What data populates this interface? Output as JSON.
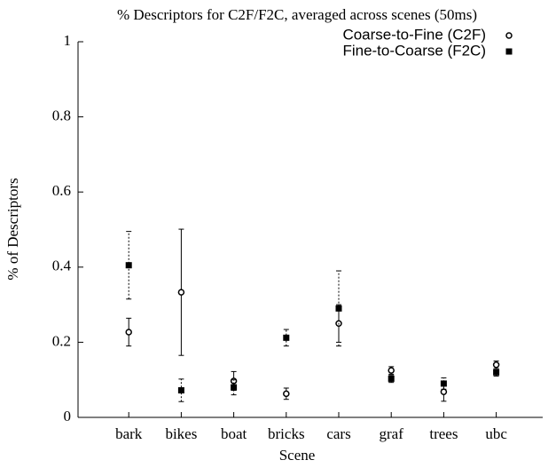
{
  "chart_data": {
    "type": "errorbar",
    "title": "% Descriptors for C2F/F2C, averaged across scenes (50ms)",
    "x_label": "Scene",
    "y_label": "% of Descriptors",
    "categories": [
      "bark",
      "bikes",
      "boat",
      "bricks",
      "cars",
      "graf",
      "trees",
      "ubc"
    ],
    "series": [
      {
        "name": "Coarse-to-Fine (C2F)",
        "color": "#000000",
        "marker": "circle",
        "linestyle": "solid",
        "values": [
          0.227,
          0.333,
          0.097,
          0.063,
          0.25,
          0.125,
          0.068,
          0.14
        ],
        "errors": [
          0.037,
          0.168,
          0.025,
          0.015,
          0.05,
          0.01,
          0.025,
          0.01
        ]
      },
      {
        "name": "Fine-to-Coarse (F2C)",
        "color": "#000000",
        "marker": "square",
        "linestyle": "dotted",
        "values": [
          0.405,
          0.072,
          0.08,
          0.212,
          0.29,
          0.103,
          0.09,
          0.12
        ],
        "errors": [
          0.09,
          0.03,
          0.02,
          0.022,
          0.1,
          0.01,
          0.015,
          0.01
        ]
      }
    ],
    "ylim": [
      0,
      1
    ],
    "yticks": [
      0,
      0.2,
      0.4,
      0.6,
      0.8,
      1
    ],
    "grid": false,
    "legend": "upper right"
  }
}
